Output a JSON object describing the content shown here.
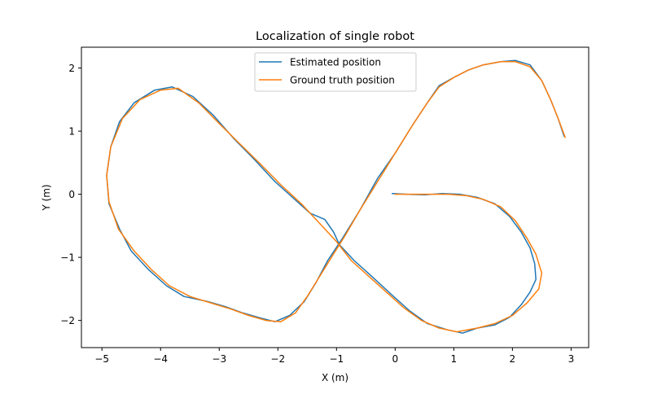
{
  "chart_data": {
    "type": "line",
    "title": "Localization of single robot",
    "xlabel": "X (m)",
    "ylabel": "Y (m)",
    "xlim": [
      -5.35,
      3.3
    ],
    "ylim": [
      -2.43,
      2.33
    ],
    "xticks": [
      -5,
      -4,
      -3,
      -2,
      -1,
      0,
      1,
      2,
      3
    ],
    "xtick_labels": [
      "−5",
      "−4",
      "−3",
      "−2",
      "−1",
      "0",
      "1",
      "2",
      "3"
    ],
    "yticks": [
      -2,
      -1,
      0,
      1,
      2
    ],
    "ytick_labels": [
      "−2",
      "−1",
      "0",
      "1",
      "2"
    ],
    "grid": false,
    "legend_position": "top-center",
    "series": [
      {
        "name": "Estimated position",
        "color": "#1f77b4",
        "points": [
          [
            -0.05,
            0.01
          ],
          [
            0.2,
            0.0
          ],
          [
            0.5,
            -0.01
          ],
          [
            0.8,
            0.01
          ],
          [
            1.1,
            0.0
          ],
          [
            1.4,
            -0.05
          ],
          [
            1.7,
            -0.15
          ],
          [
            1.95,
            -0.35
          ],
          [
            2.15,
            -0.6
          ],
          [
            2.3,
            -0.85
          ],
          [
            2.38,
            -1.1
          ],
          [
            2.4,
            -1.35
          ],
          [
            2.3,
            -1.55
          ],
          [
            2.15,
            -1.75
          ],
          [
            1.95,
            -1.95
          ],
          [
            1.7,
            -2.07
          ],
          [
            1.4,
            -2.12
          ],
          [
            1.15,
            -2.2
          ],
          [
            0.9,
            -2.15
          ],
          [
            0.55,
            -2.05
          ],
          [
            0.25,
            -1.85
          ],
          [
            -0.05,
            -1.6
          ],
          [
            -0.4,
            -1.3
          ],
          [
            -0.7,
            -1.05
          ],
          [
            -0.95,
            -0.8
          ],
          [
            -1.05,
            -0.6
          ],
          [
            -1.2,
            -0.4
          ],
          [
            -1.45,
            -0.3
          ],
          [
            -1.75,
            -0.05
          ],
          [
            -2.05,
            0.2
          ],
          [
            -2.4,
            0.55
          ],
          [
            -2.75,
            0.88
          ],
          [
            -3.1,
            1.25
          ],
          [
            -3.45,
            1.55
          ],
          [
            -3.8,
            1.7
          ],
          [
            -4.1,
            1.65
          ],
          [
            -4.45,
            1.45
          ],
          [
            -4.7,
            1.15
          ],
          [
            -4.85,
            0.75
          ],
          [
            -4.92,
            0.3
          ],
          [
            -4.88,
            -0.15
          ],
          [
            -4.7,
            -0.55
          ],
          [
            -4.5,
            -0.9
          ],
          [
            -4.2,
            -1.2
          ],
          [
            -3.9,
            -1.45
          ],
          [
            -3.6,
            -1.62
          ],
          [
            -3.2,
            -1.7
          ],
          [
            -2.9,
            -1.78
          ],
          [
            -2.6,
            -1.88
          ],
          [
            -2.3,
            -1.96
          ],
          [
            -2.05,
            -2.02
          ],
          [
            -1.8,
            -1.92
          ],
          [
            -1.55,
            -1.7
          ],
          [
            -1.35,
            -1.4
          ],
          [
            -1.15,
            -1.05
          ],
          [
            -0.9,
            -0.7
          ],
          [
            -0.6,
            -0.25
          ],
          [
            -0.3,
            0.25
          ],
          [
            0.0,
            0.65
          ],
          [
            0.3,
            1.1
          ],
          [
            0.55,
            1.45
          ],
          [
            0.75,
            1.72
          ],
          [
            1.0,
            1.85
          ],
          [
            1.25,
            1.97
          ],
          [
            1.5,
            2.05
          ],
          [
            1.8,
            2.1
          ],
          [
            2.05,
            2.12
          ],
          [
            2.3,
            2.05
          ],
          [
            2.5,
            1.8
          ],
          [
            2.65,
            1.5
          ],
          [
            2.78,
            1.2
          ],
          [
            2.88,
            0.92
          ]
        ]
      },
      {
        "name": "Ground truth position",
        "color": "#ff7f0e",
        "points": [
          [
            0.0,
            0.0
          ],
          [
            0.3,
            0.0
          ],
          [
            0.6,
            0.0
          ],
          [
            0.9,
            0.0
          ],
          [
            1.2,
            -0.02
          ],
          [
            1.5,
            -0.08
          ],
          [
            1.8,
            -0.2
          ],
          [
            2.05,
            -0.42
          ],
          [
            2.25,
            -0.7
          ],
          [
            2.4,
            -0.95
          ],
          [
            2.5,
            -1.25
          ],
          [
            2.45,
            -1.5
          ],
          [
            2.25,
            -1.72
          ],
          [
            2.0,
            -1.92
          ],
          [
            1.7,
            -2.05
          ],
          [
            1.4,
            -2.12
          ],
          [
            1.05,
            -2.18
          ],
          [
            0.75,
            -2.12
          ],
          [
            0.45,
            -2.0
          ],
          [
            0.15,
            -1.8
          ],
          [
            -0.15,
            -1.55
          ],
          [
            -0.45,
            -1.3
          ],
          [
            -0.75,
            -1.05
          ],
          [
            -1.0,
            -0.75
          ],
          [
            -1.3,
            -0.45
          ],
          [
            -1.6,
            -0.15
          ],
          [
            -1.95,
            0.15
          ],
          [
            -2.3,
            0.48
          ],
          [
            -2.65,
            0.8
          ],
          [
            -3.0,
            1.12
          ],
          [
            -3.35,
            1.45
          ],
          [
            -3.7,
            1.68
          ],
          [
            -4.0,
            1.65
          ],
          [
            -4.35,
            1.5
          ],
          [
            -4.65,
            1.2
          ],
          [
            -4.85,
            0.75
          ],
          [
            -4.92,
            0.3
          ],
          [
            -4.88,
            -0.12
          ],
          [
            -4.72,
            -0.55
          ],
          [
            -4.45,
            -0.9
          ],
          [
            -4.15,
            -1.2
          ],
          [
            -3.85,
            -1.45
          ],
          [
            -3.5,
            -1.62
          ],
          [
            -3.15,
            -1.72
          ],
          [
            -2.8,
            -1.82
          ],
          [
            -2.5,
            -1.92
          ],
          [
            -2.2,
            -2.0
          ],
          [
            -1.95,
            -2.02
          ],
          [
            -1.7,
            -1.88
          ],
          [
            -1.5,
            -1.62
          ],
          [
            -1.3,
            -1.32
          ],
          [
            -1.1,
            -1.02
          ],
          [
            -0.85,
            -0.65
          ],
          [
            -0.6,
            -0.25
          ],
          [
            -0.3,
            0.2
          ],
          [
            0.0,
            0.65
          ],
          [
            0.3,
            1.1
          ],
          [
            0.55,
            1.45
          ],
          [
            0.75,
            1.7
          ],
          [
            1.0,
            1.85
          ],
          [
            1.25,
            1.97
          ],
          [
            1.5,
            2.05
          ],
          [
            1.8,
            2.1
          ],
          [
            2.05,
            2.1
          ],
          [
            2.3,
            2.02
          ],
          [
            2.5,
            1.8
          ],
          [
            2.65,
            1.5
          ],
          [
            2.78,
            1.2
          ],
          [
            2.9,
            0.9
          ]
        ]
      }
    ]
  }
}
